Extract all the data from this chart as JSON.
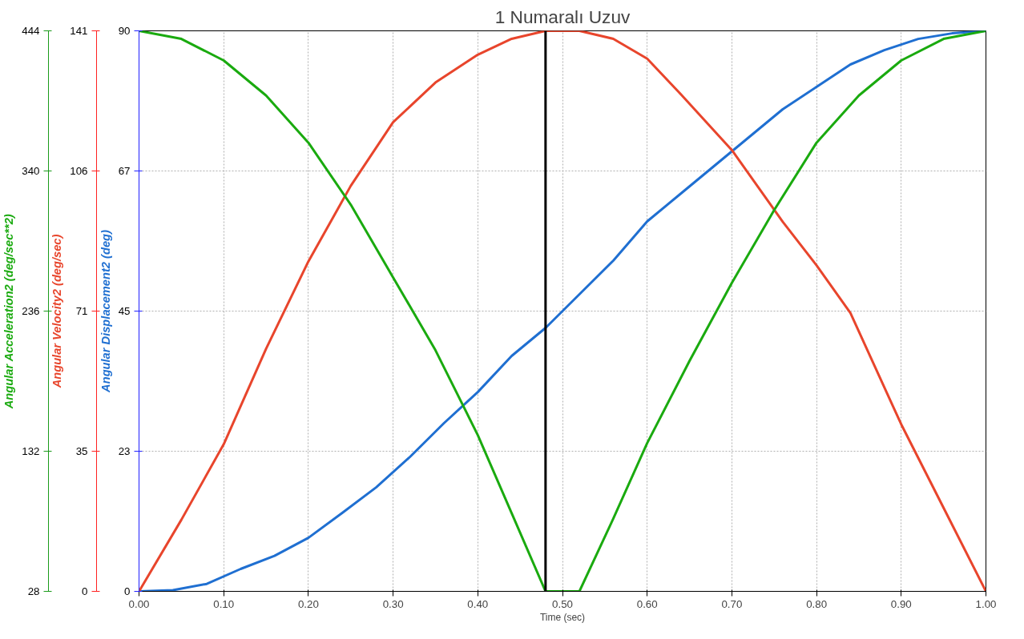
{
  "chart_data": {
    "type": "line",
    "title": "1 Numaralı Uzuv",
    "xlabel": "Time (sec)",
    "ylabel": "Angular Displacement2 (deg)",
    "y3label": "Angular Velocity2 (deg/sec)",
    "y2label": "Angular Acceleration2 (deg/sec**2)",
    "xlim": [
      0,
      1
    ],
    "xticks": [
      {
        "value": 0,
        "label": "0.00"
      },
      {
        "value": 0.1,
        "label": "0.10"
      },
      {
        "value": 0.2,
        "label": "0.20"
      },
      {
        "value": 0.3,
        "label": "0.30"
      },
      {
        "value": 0.4,
        "label": "0.40"
      },
      {
        "value": 0.5,
        "label": "0.50"
      },
      {
        "value": 0.6,
        "label": "0.60"
      },
      {
        "value": 0.7,
        "label": "0.70"
      },
      {
        "value": 0.8,
        "label": "0.80"
      },
      {
        "value": 0.9,
        "label": "0.90"
      },
      {
        "value": 1,
        "label": "1.00"
      }
    ],
    "ylim": [
      0,
      90
    ],
    "yticks": [
      0,
      {
        "value": 22.5,
        "label": "23"
      },
      45,
      {
        "value": 67.5,
        "label": "67"
      },
      90
    ],
    "y3lim": [
      0,
      141
    ],
    "y3ticks": [
      0,
      {
        "value": 35.25,
        "label": "35"
      },
      {
        "value": 70.5,
        "label": "71"
      },
      {
        "value": 105.75,
        "label": "106"
      },
      141
    ],
    "y2lim": [
      28,
      444
    ],
    "y2ticks": [
      28,
      132,
      236,
      340,
      444
    ],
    "grid": true,
    "series": [
      {
        "color": "#1f6fd1",
        "axis": "y",
        "x": [
          0,
          0.04,
          0.08,
          0.12,
          0.16,
          0.2,
          0.24,
          0.28,
          0.32,
          0.36,
          0.4,
          0.44,
          0.48,
          0.52,
          0.56,
          0.6,
          0.64,
          0.68,
          0.72,
          0.76,
          0.8,
          0.84,
          0.88,
          0.92,
          0.96,
          1
        ],
        "values": [
          0,
          0.2,
          1.2,
          3.6,
          5.7,
          8.6,
          12.6,
          16.7,
          21.6,
          27,
          32,
          37.8,
          42.3,
          47.7,
          53.1,
          59.4,
          63.9,
          68.4,
          72.9,
          77.4,
          81,
          84.6,
          86.9,
          88.7,
          89.6,
          90
        ]
      },
      {
        "color": "#e8452c",
        "axis": "y3",
        "x": [
          0,
          0.05,
          0.1,
          0.15,
          0.2,
          0.25,
          0.3,
          0.35,
          0.4,
          0.44,
          0.48,
          0.52,
          0.56,
          0.6,
          0.64,
          0.7,
          0.76,
          0.8,
          0.84,
          0.9,
          0.95,
          1
        ],
        "values": [
          0,
          18,
          37,
          61,
          83,
          102,
          118,
          128,
          135,
          139,
          141,
          141,
          139,
          134,
          125,
          111,
          93,
          82,
          70,
          42,
          21,
          0
        ]
      },
      {
        "color": "#1aaa0f",
        "axis": "y2",
        "x": [
          0,
          0.05,
          0.1,
          0.15,
          0.2,
          0.25,
          0.3,
          0.35,
          0.4,
          0.44,
          0.48,
          0.52,
          0.56,
          0.6,
          0.65,
          0.7,
          0.75,
          0.8,
          0.85,
          0.9,
          0.95,
          1
        ],
        "values": [
          444,
          438,
          422,
          396,
          361,
          315,
          261,
          207,
          144,
          86,
          28,
          28,
          82,
          138,
          199,
          257,
          311,
          361,
          396,
          422,
          438,
          444
        ]
      }
    ],
    "ref_lines": [
      {
        "axis": "x",
        "value": 0.48,
        "color": "#000000",
        "line_style": "solid"
      }
    ]
  }
}
